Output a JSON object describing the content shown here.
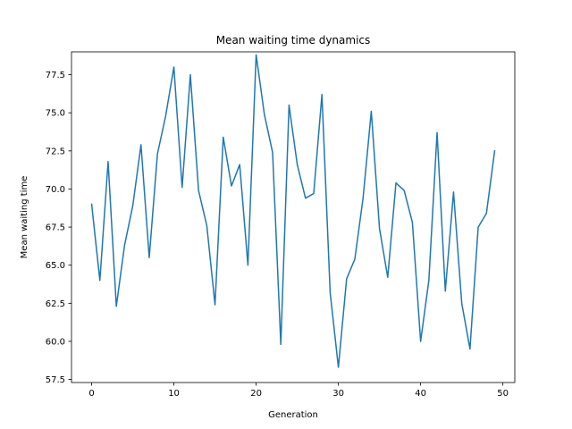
{
  "chart_data": {
    "type": "line",
    "title": "Mean waiting time dynamics",
    "xlabel": "Generation",
    "ylabel": "Mean waiting time",
    "xlim": [
      -2.45,
      51.45
    ],
    "ylim": [
      57.3,
      79.0
    ],
    "xticks": [
      0,
      10,
      20,
      30,
      40,
      50
    ],
    "xtick_labels": [
      "0",
      "10",
      "20",
      "30",
      "40",
      "50"
    ],
    "yticks": [
      57.5,
      60.0,
      62.5,
      65.0,
      67.5,
      70.0,
      72.5,
      75.0,
      77.5
    ],
    "ytick_labels": [
      "57.5",
      "60.0",
      "62.5",
      "65.0",
      "67.5",
      "70.0",
      "72.5",
      "75.0",
      "77.5"
    ],
    "grid": false,
    "series": [
      {
        "color": "#1f77b4",
        "x": [
          0,
          1,
          2,
          3,
          4,
          5,
          6,
          7,
          8,
          9,
          10,
          11,
          12,
          13,
          14,
          15,
          16,
          17,
          18,
          19,
          20,
          21,
          22,
          23,
          24,
          25,
          26,
          27,
          28,
          29,
          30,
          31,
          32,
          33,
          34,
          35,
          36,
          37,
          38,
          39,
          40,
          41,
          42,
          43,
          44,
          45,
          46,
          47,
          48,
          49
        ],
        "values": [
          69.0,
          64.0,
          71.8,
          62.3,
          66.3,
          68.9,
          72.9,
          65.5,
          72.3,
          74.8,
          78.0,
          70.1,
          77.5,
          69.9,
          67.6,
          62.4,
          73.4,
          70.2,
          71.6,
          65.0,
          78.8,
          74.9,
          72.4,
          59.8,
          75.5,
          71.6,
          69.4,
          69.7,
          76.2,
          63.2,
          58.3,
          64.1,
          65.4,
          69.4,
          75.1,
          67.4,
          64.2,
          70.4,
          69.9,
          67.8,
          60.0,
          64.0,
          73.7,
          63.3,
          69.8,
          62.5,
          59.5,
          67.5,
          68.4,
          72.5
        ]
      }
    ]
  }
}
